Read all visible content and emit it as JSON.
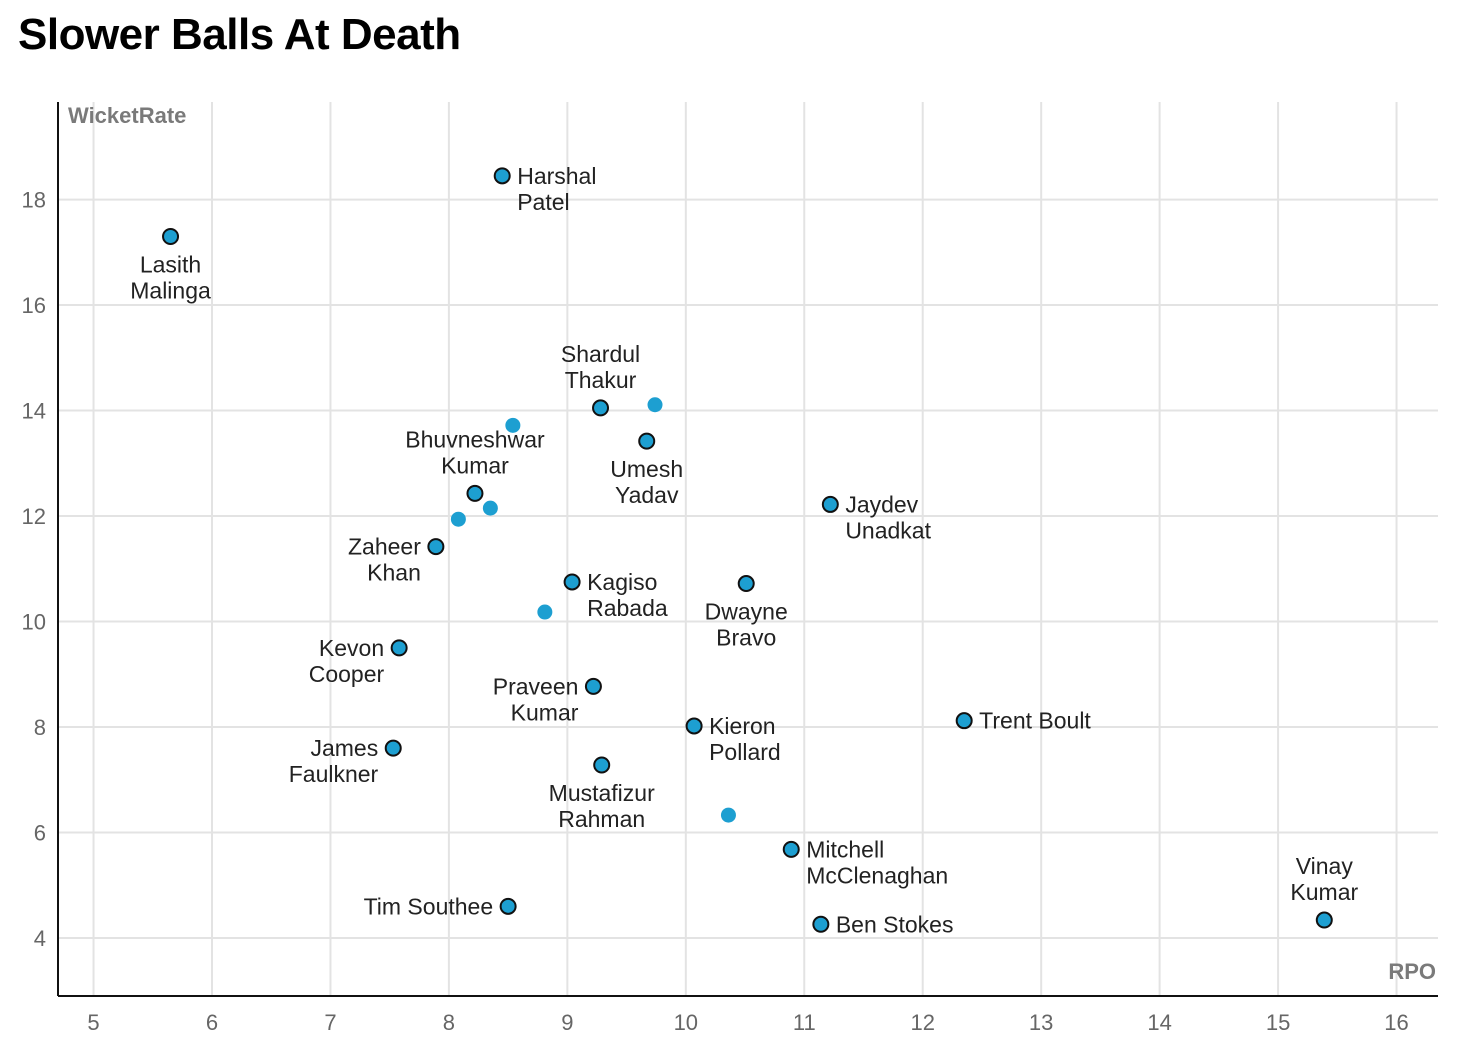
{
  "chart_data": {
    "type": "scatter",
    "title": "Slower Balls At Death",
    "xlabel": "RPO",
    "ylabel": "WicketRate",
    "xlim": [
      4.7,
      16.35
    ],
    "ylim": [
      2.9,
      19.85
    ],
    "xticks": [
      5,
      6,
      7,
      8,
      9,
      10,
      11,
      12,
      13,
      14,
      15,
      16
    ],
    "yticks": [
      4,
      6,
      8,
      10,
      12,
      14,
      16,
      18
    ],
    "grid": true,
    "marker_color": "#1d9fd1",
    "points": [
      {
        "x": 5.65,
        "y": 17.3,
        "label": "Lasith Malinga",
        "lines": [
          "Lasith",
          "Malinga"
        ],
        "pos": "below"
      },
      {
        "x": 8.45,
        "y": 18.45,
        "label": "Harshal Patel",
        "lines": [
          "Harshal",
          "Patel"
        ],
        "pos": "right"
      },
      {
        "x": 9.28,
        "y": 14.05,
        "label": "Shardul Thakur",
        "lines": [
          "Shardul",
          "Thakur"
        ],
        "pos": "above"
      },
      {
        "x": 9.67,
        "y": 13.42,
        "label": "Umesh Yadav",
        "lines": [
          "Umesh",
          "Yadav"
        ],
        "pos": "below"
      },
      {
        "x": 8.22,
        "y": 12.43,
        "label": "Bhuvneshwar Kumar",
        "lines": [
          "Bhuvneshwar",
          "Kumar"
        ],
        "pos": "above"
      },
      {
        "x": 11.22,
        "y": 12.22,
        "label": "Jaydev Unadkat",
        "lines": [
          "Jaydev",
          "Unadkat"
        ],
        "pos": "right"
      },
      {
        "x": 7.89,
        "y": 11.42,
        "label": "Zaheer Khan",
        "lines": [
          "Zaheer",
          "Khan"
        ],
        "pos": "left"
      },
      {
        "x": 9.04,
        "y": 10.75,
        "label": "Kagiso Rabada",
        "lines": [
          "Kagiso",
          "Rabada"
        ],
        "pos": "right"
      },
      {
        "x": 10.51,
        "y": 10.72,
        "label": "Dwayne Bravo",
        "lines": [
          "Dwayne",
          "Bravo"
        ],
        "pos": "below"
      },
      {
        "x": 7.58,
        "y": 9.5,
        "label": "Kevon Cooper",
        "lines": [
          "Kevon",
          "Cooper"
        ],
        "pos": "left"
      },
      {
        "x": 9.22,
        "y": 8.77,
        "label": "Praveen Kumar",
        "lines": [
          "Praveen",
          "Kumar"
        ],
        "pos": "left"
      },
      {
        "x": 10.07,
        "y": 8.02,
        "label": "Kieron Pollard",
        "lines": [
          "Kieron",
          "Pollard"
        ],
        "pos": "right"
      },
      {
        "x": 12.35,
        "y": 8.12,
        "label": "Trent Boult",
        "lines": [
          "Trent Boult"
        ],
        "pos": "right"
      },
      {
        "x": 7.53,
        "y": 7.6,
        "label": "James Faulkner",
        "lines": [
          "James",
          "Faulkner"
        ],
        "pos": "left"
      },
      {
        "x": 9.29,
        "y": 7.28,
        "label": "Mustafizur Rahman",
        "lines": [
          "Mustafizur",
          "Rahman"
        ],
        "pos": "below"
      },
      {
        "x": 10.89,
        "y": 5.68,
        "label": "Mitchell McClenaghan",
        "lines": [
          "Mitchell",
          "McClenaghan"
        ],
        "pos": "right"
      },
      {
        "x": 8.5,
        "y": 4.6,
        "label": "Tim Southee",
        "lines": [
          "Tim Southee"
        ],
        "pos": "left"
      },
      {
        "x": 11.14,
        "y": 4.26,
        "label": "Ben Stokes",
        "lines": [
          "Ben Stokes"
        ],
        "pos": "right"
      },
      {
        "x": 15.39,
        "y": 4.34,
        "label": "Vinay Kumar",
        "lines": [
          "Vinay",
          "Kumar"
        ],
        "pos": "above"
      },
      {
        "x": 8.54,
        "y": 13.72,
        "label": ""
      },
      {
        "x": 9.74,
        "y": 14.11,
        "label": ""
      },
      {
        "x": 8.08,
        "y": 11.94,
        "label": ""
      },
      {
        "x": 8.35,
        "y": 12.15,
        "label": ""
      },
      {
        "x": 8.81,
        "y": 10.18,
        "label": ""
      },
      {
        "x": 10.36,
        "y": 6.33,
        "label": ""
      }
    ]
  }
}
